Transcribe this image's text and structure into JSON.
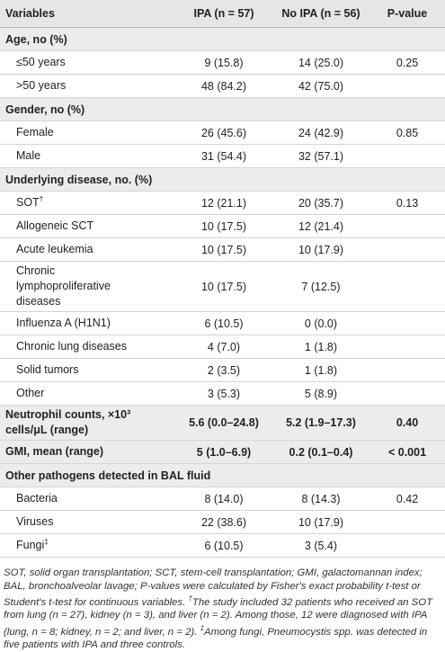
{
  "table": {
    "header": [
      "Variables",
      "IPA (n = 57)",
      "No IPA (n = 56)",
      "P-value"
    ],
    "groups": [
      {
        "label": "Age, no (%)",
        "rows": [
          {
            "label": "≤50 years",
            "ipa": "9 (15.8)",
            "no_ipa": "14 (25.0)",
            "p": "0.25"
          },
          {
            "label": ">50 years",
            "ipa": "48 (84.2)",
            "no_ipa": "42 (75.0)"
          }
        ]
      },
      {
        "label": "Gender, no (%)",
        "rows": [
          {
            "label": "Female",
            "ipa": "26 (45.6)",
            "no_ipa": "24 (42.9)",
            "p": "0.85"
          },
          {
            "label": "Male",
            "ipa": "31 (54.4)",
            "no_ipa": "32 (57.1)"
          }
        ]
      },
      {
        "label": "Underlying disease, no. (%)",
        "rows": [
          {
            "label": "SOT",
            "marker": "†",
            "ipa": "12 (21.1)",
            "no_ipa": "20 (35.7)",
            "p": "0.13"
          },
          {
            "label": "Allogeneic SCT",
            "ipa": "10 (17.5)",
            "no_ipa": "12 (21.4)"
          },
          {
            "label": "Acute leukemia",
            "ipa": "10 (17.5)",
            "no_ipa": "10 (17.9)"
          },
          {
            "label": "Chronic lymphoproliferative diseases",
            "ipa": "10 (17.5)",
            "no_ipa": "7 (12.5)"
          },
          {
            "label": "Influenza A (H1N1)",
            "ipa": "6 (10.5)",
            "no_ipa": "0 (0.0)"
          },
          {
            "label": "Chronic lung diseases",
            "ipa": "4 (7.0)",
            "no_ipa": "1 (1.8)"
          },
          {
            "label": "Solid tumors",
            "ipa": "2 (3.5)",
            "no_ipa": "1 (1.8)"
          },
          {
            "label": "Other",
            "ipa": "3 (5.3)",
            "no_ipa": "5 (8.9)"
          }
        ]
      },
      {
        "label": "Neutrophil counts, ×10³ cells/μL (range)",
        "ipa": "5.6 (0.0–24.8)",
        "no_ipa": "5.2 (1.9–17.3)",
        "p": "0.40"
      },
      {
        "label": "GMI, mean (range)",
        "ipa": "5 (1.0–6.9)",
        "no_ipa": "0.2 (0.1–0.4)",
        "p": "< 0.001"
      },
      {
        "label": "Other pathogens detected in BAL fluid",
        "rows": [
          {
            "label": "Bacteria",
            "ipa": "8 (14.0)",
            "no_ipa": "8 (14.3)",
            "p": "0.42"
          },
          {
            "label": "Viruses",
            "ipa": "22 (38.6)",
            "no_ipa": "10 (17.9)"
          },
          {
            "label": "Fungi",
            "marker": "‡",
            "ipa": "6 (10.5)",
            "no_ipa": "3 (5.4)"
          }
        ]
      }
    ]
  },
  "footnote": {
    "abbreviations": "SOT, solid organ transplantation; SCT, stem-cell transplantation; GMI, galactomannan index; BAL, bronchoalveolar lavage; P-values were calculated by Fisher's exact probability t-test or Student's t-test for continuous variables.",
    "dagger_mark": "†",
    "dagger_note": "The study included 32 patients who received an SOT from lung (n = 27), kidney (n = 3), and liver (n = 2). Among those, 12 were diagnosed with IPA (lung, n = 8; kidney, n = 2; and liver, n = 2).",
    "double_dagger_mark": "‡",
    "double_dagger_note": "Among fungi, Pneumocystis spp. was detected in five patients with IPA and three controls."
  }
}
